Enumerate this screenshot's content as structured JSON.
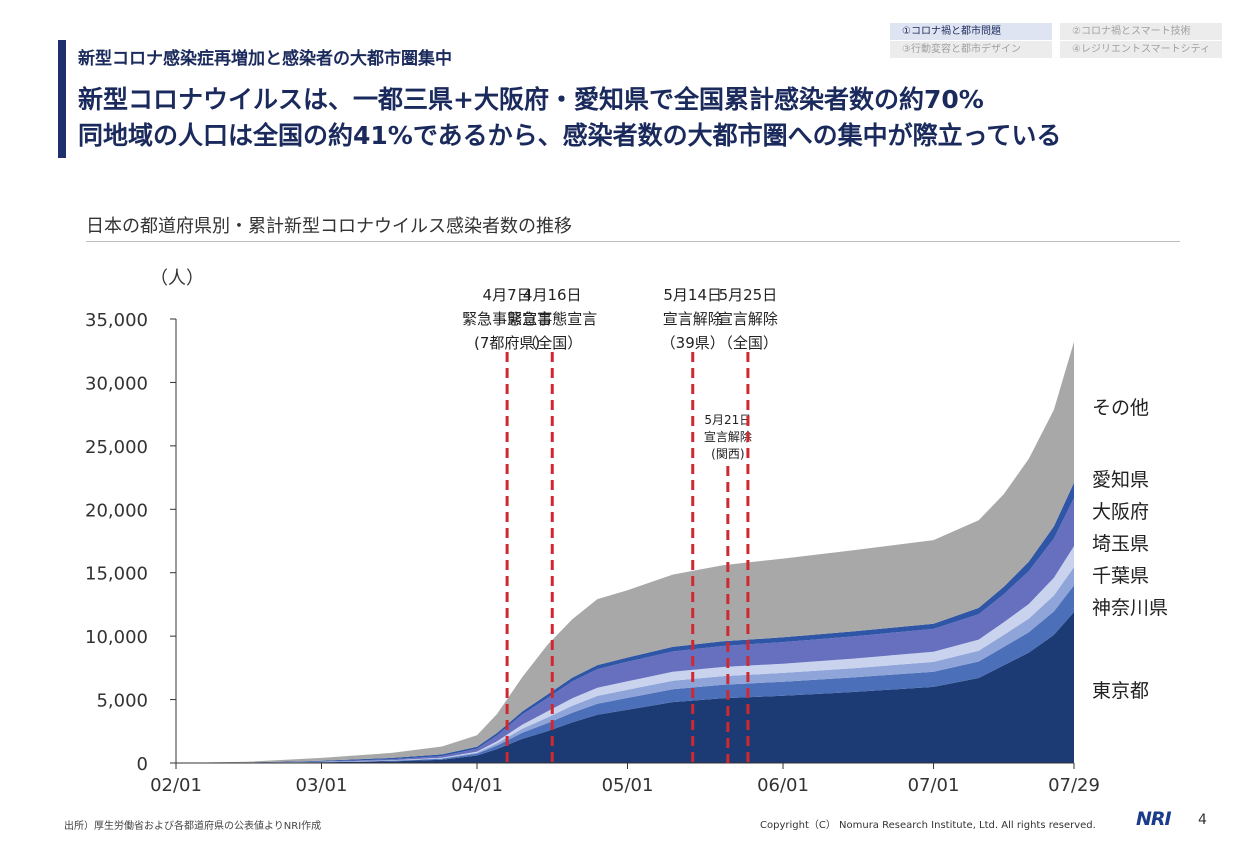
{
  "header": {
    "subtitle": "新型コロナ感染症再増加と感染者の大都市圏集中",
    "headline_line1": "新型コロナウイルスは、一都三県+大阪府・愛知県で全国累計感染者数の約70%",
    "headline_line2": "同地域の人口は全国の約41%であるから、感染者数の大都市圏への集中が際立っている"
  },
  "nav": {
    "tabs": [
      {
        "label": "①コロナ禍と都市問題",
        "active": true
      },
      {
        "label": "②コロナ禍とスマート技術",
        "active": false
      },
      {
        "label": "③行動変容と都市デザイン",
        "active": false
      },
      {
        "label": "④レジリエントスマートシティ",
        "active": false
      }
    ]
  },
  "footer": {
    "source": "出所）厚生労働省および各都道府県の公表値よりNRI作成",
    "copyright": "Copyright（C） Nomura Research Institute, Ltd. All rights reserved.",
    "logo": "NRI",
    "page": "4"
  },
  "colors": {
    "tokyo": "#1c3a73",
    "kanagawa": "#4b6fb8",
    "chiba": "#8fa5d9",
    "saitama": "#c9d3ee",
    "osaka": "#6670bf",
    "aichi": "#2f56a6",
    "other": "#a8a8a8",
    "marker": "#d0282f"
  },
  "chart_data": {
    "type": "area",
    "stacked": true,
    "title": "日本の都道府県別・累計新型コロナウイルス感染者数の推移",
    "ylabel": "（人）",
    "ylim": [
      0,
      35000
    ],
    "yticks": [
      "0",
      "5,000",
      "10,000",
      "15,000",
      "20,000",
      "25,000",
      "30,000",
      "35,000"
    ],
    "yticks_values": [
      0,
      5000,
      10000,
      15000,
      20000,
      25000,
      30000,
      35000
    ],
    "xticks": [
      {
        "date": "2020-02-01",
        "label": "02/01"
      },
      {
        "date": "2020-03-01",
        "label": "03/01"
      },
      {
        "date": "2020-04-01",
        "label": "04/01"
      },
      {
        "date": "2020-05-01",
        "label": "05/01"
      },
      {
        "date": "2020-06-01",
        "label": "06/01"
      },
      {
        "date": "2020-07-01",
        "label": "07/01"
      },
      {
        "date": "2020-07-29",
        "label": "07/29"
      }
    ],
    "x": [
      "2020-02-01",
      "2020-02-15",
      "2020-03-01",
      "2020-03-15",
      "2020-03-25",
      "2020-04-01",
      "2020-04-05",
      "2020-04-10",
      "2020-04-15",
      "2020-04-20",
      "2020-04-25",
      "2020-05-01",
      "2020-05-10",
      "2020-05-20",
      "2020-06-01",
      "2020-06-15",
      "2020-07-01",
      "2020-07-10",
      "2020-07-15",
      "2020-07-20",
      "2020-07-25",
      "2020-07-29"
    ],
    "series": [
      {
        "name": "東京都",
        "key": "tokyo",
        "values": [
          0,
          20,
          60,
          130,
          260,
          590,
          1100,
          1900,
          2500,
          3200,
          3800,
          4200,
          4800,
          5100,
          5300,
          5600,
          6000,
          6700,
          7700,
          8700,
          10100,
          11900
        ]
      },
      {
        "name": "神奈川県",
        "key": "kanagawa",
        "values": [
          0,
          5,
          20,
          40,
          80,
          150,
          280,
          480,
          630,
          760,
          870,
          930,
          1020,
          1070,
          1110,
          1150,
          1200,
          1300,
          1450,
          1600,
          1850,
          2100
        ]
      },
      {
        "name": "千葉県",
        "key": "chiba",
        "values": [
          0,
          2,
          10,
          20,
          40,
          80,
          170,
          320,
          450,
          560,
          620,
          640,
          670,
          680,
          690,
          720,
          770,
          850,
          950,
          1080,
          1250,
          1450
        ]
      },
      {
        "name": "埼玉県",
        "key": "saitama",
        "values": [
          0,
          2,
          10,
          20,
          40,
          80,
          170,
          320,
          480,
          580,
          640,
          670,
          700,
          720,
          730,
          760,
          800,
          880,
          1000,
          1150,
          1400,
          1650
        ]
      },
      {
        "name": "大阪府",
        "key": "osaka",
        "values": [
          0,
          5,
          20,
          80,
          120,
          220,
          450,
          800,
          1050,
          1330,
          1470,
          1540,
          1600,
          1650,
          1700,
          1750,
          1800,
          2000,
          2200,
          2600,
          3100,
          3800
        ]
      },
      {
        "name": "愛知県",
        "key": "aichi",
        "values": [
          0,
          10,
          50,
          110,
          140,
          160,
          200,
          240,
          280,
          300,
          320,
          340,
          360,
          370,
          380,
          390,
          400,
          500,
          600,
          750,
          950,
          1200
        ]
      },
      {
        "name": "その他",
        "key": "other",
        "values": [
          0,
          50,
          230,
          400,
          620,
          900,
          1500,
          2700,
          3900,
          4600,
          5200,
          5300,
          5700,
          6000,
          6200,
          6400,
          6600,
          6900,
          7300,
          8100,
          9200,
          11100
        ]
      }
    ],
    "annotations": [
      {
        "date": "2020-04-07",
        "lines": [
          "4月7日",
          "緊急事態宣言",
          "(7都府県)"
        ]
      },
      {
        "date": "2020-04-16",
        "lines": [
          "4月16日",
          "緊急事態宣言",
          "（全国）"
        ]
      },
      {
        "date": "2020-05-14",
        "lines": [
          "5月14日",
          "宣言解除",
          "（39県）"
        ]
      },
      {
        "date": "2020-05-21",
        "lines": [
          "5月21日",
          "宣言解除",
          "(関西)"
        ]
      },
      {
        "date": "2020-05-25",
        "lines": [
          "5月25日",
          "宣言解除",
          "（全国）"
        ]
      }
    ],
    "legend": "right, labels beside each band"
  }
}
